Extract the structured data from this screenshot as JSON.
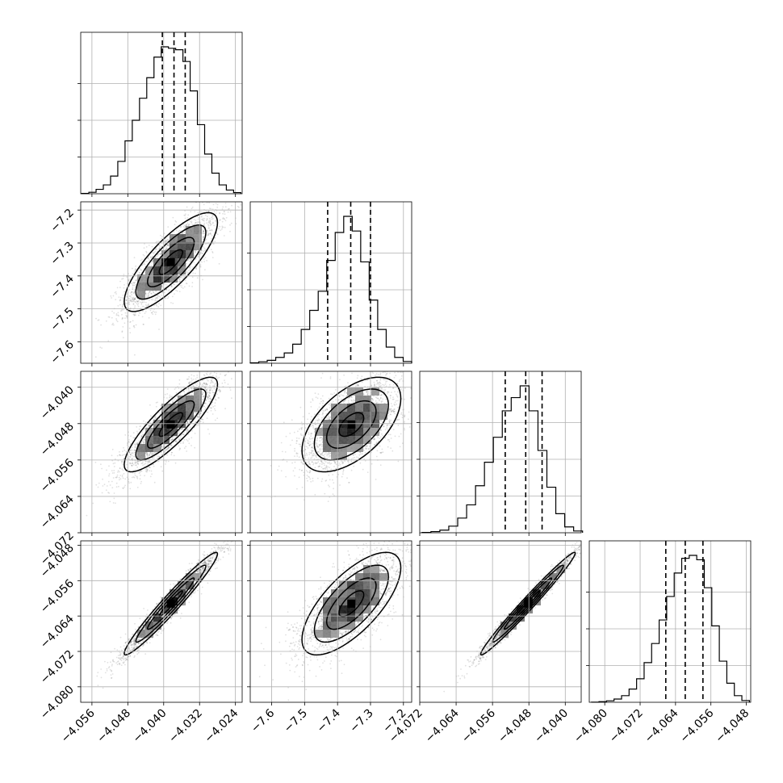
{
  "chart_data": {
    "type": "corner",
    "title": "",
    "grid": true,
    "parameters": [
      {
        "range": [
          -4.0585,
          -4.0225
        ],
        "ticks": [
          -4.056,
          -4.048,
          -4.04,
          -4.032,
          -4.024
        ],
        "tick_labels": [
          "−4.056",
          "−4.048",
          "−4.040",
          "−4.032",
          "−4.024"
        ],
        "quantiles": [
          -4.0403,
          -4.0377,
          -4.0352
        ],
        "hist_edges_range": [
          -4.0583,
          -4.0228
        ],
        "hist_values": [
          2,
          10,
          30,
          60,
          120,
          220,
          360,
          500,
          650,
          790,
          930,
          1000,
          990,
          980,
          900,
          700,
          470,
          270,
          140,
          60,
          25,
          8
        ]
      },
      {
        "range": [
          -7.665,
          -7.175
        ],
        "ticks": [
          -7.2,
          -7.3,
          -7.4,
          -7.5,
          -7.6
        ],
        "tick_labels": [
          "−7.2",
          "−7.3",
          "−7.4",
          "−7.5",
          "−7.6"
        ],
        "x_ticks": [
          -7.6,
          -7.5,
          -7.4,
          -7.3,
          -7.2
        ],
        "x_tick_labels": [
          "−7.6",
          "−7.5",
          "−7.4",
          "−7.3",
          "−7.2"
        ],
        "quantiles": [
          -7.43,
          -7.36,
          -7.3
        ],
        "hist_edges_range": [
          -7.665,
          -7.175
        ],
        "hist_values": [
          3,
          10,
          20,
          40,
          70,
          130,
          230,
          360,
          490,
          700,
          890,
          1000,
          900,
          690,
          430,
          230,
          110,
          40,
          12
        ]
      },
      {
        "range": [
          -4.072,
          -4.0365
        ],
        "ticks": [
          -4.04,
          -4.048,
          -4.056,
          -4.064,
          -4.072
        ],
        "tick_labels": [
          "−4.040",
          "−4.048",
          "−4.056",
          "−4.064",
          "−4.072"
        ],
        "x_ticks": [
          -4.072,
          -4.064,
          -4.056,
          -4.048,
          -4.04
        ],
        "x_tick_labels": [
          "−4.072",
          "−4.064",
          "−4.056",
          "−4.048",
          "−4.040"
        ],
        "quantiles": [
          -4.0532,
          -4.0487,
          -4.0451
        ],
        "hist_edges_range": [
          -4.0715,
          -4.0362
        ],
        "hist_values": [
          2,
          8,
          18,
          45,
          100,
          190,
          320,
          480,
          650,
          830,
          920,
          1000,
          830,
          560,
          310,
          130,
          40,
          12
        ]
      },
      {
        "range": [
          -4.0835,
          -4.047
        ],
        "ticks": [
          -4.048,
          -4.056,
          -4.064,
          -4.072,
          -4.08
        ],
        "tick_labels": [
          "−4.048",
          "−4.056",
          "−4.064",
          "−4.072",
          "−4.080"
        ],
        "x_ticks": [
          -4.08,
          -4.072,
          -4.064,
          -4.056,
          -4.048
        ],
        "x_tick_labels": [
          "−4.080",
          "−4.072",
          "−4.064",
          "−4.056",
          "−4.048"
        ],
        "quantiles": [
          -4.0662,
          -4.0618,
          -4.0578
        ],
        "hist_edges_range": [
          -4.083,
          -4.0473
        ],
        "hist_values": [
          1,
          4,
          10,
          22,
          45,
          90,
          160,
          270,
          400,
          560,
          720,
          880,
          980,
          1000,
          970,
          780,
          520,
          280,
          130,
          45,
          12
        ]
      }
    ],
    "pairs": [
      {
        "x": 0,
        "y": 1,
        "center": [
          -4.0384,
          -7.358
        ],
        "sigma": [
          0.0052,
          0.075
        ],
        "rho": 0.8
      },
      {
        "x": 0,
        "y": 2,
        "center": [
          -4.0384,
          -4.0482
        ],
        "sigma": [
          0.0052,
          0.0052
        ],
        "rho": 0.85
      },
      {
        "x": 1,
        "y": 2,
        "center": [
          -7.358,
          -4.0482
        ],
        "sigma": [
          0.075,
          0.0052
        ],
        "rho": 0.55
      },
      {
        "x": 0,
        "y": 3,
        "center": [
          -4.0384,
          -4.0612
        ],
        "sigma": [
          0.0052,
          0.0058
        ],
        "rho": 0.97
      },
      {
        "x": 1,
        "y": 3,
        "center": [
          -7.358,
          -4.0612
        ],
        "sigma": [
          0.075,
          0.0058
        ],
        "rho": 0.7
      },
      {
        "x": 2,
        "y": 3,
        "center": [
          -4.0482,
          -4.0612
        ],
        "sigma": [
          0.0052,
          0.0058
        ],
        "rho": 0.985
      }
    ]
  }
}
